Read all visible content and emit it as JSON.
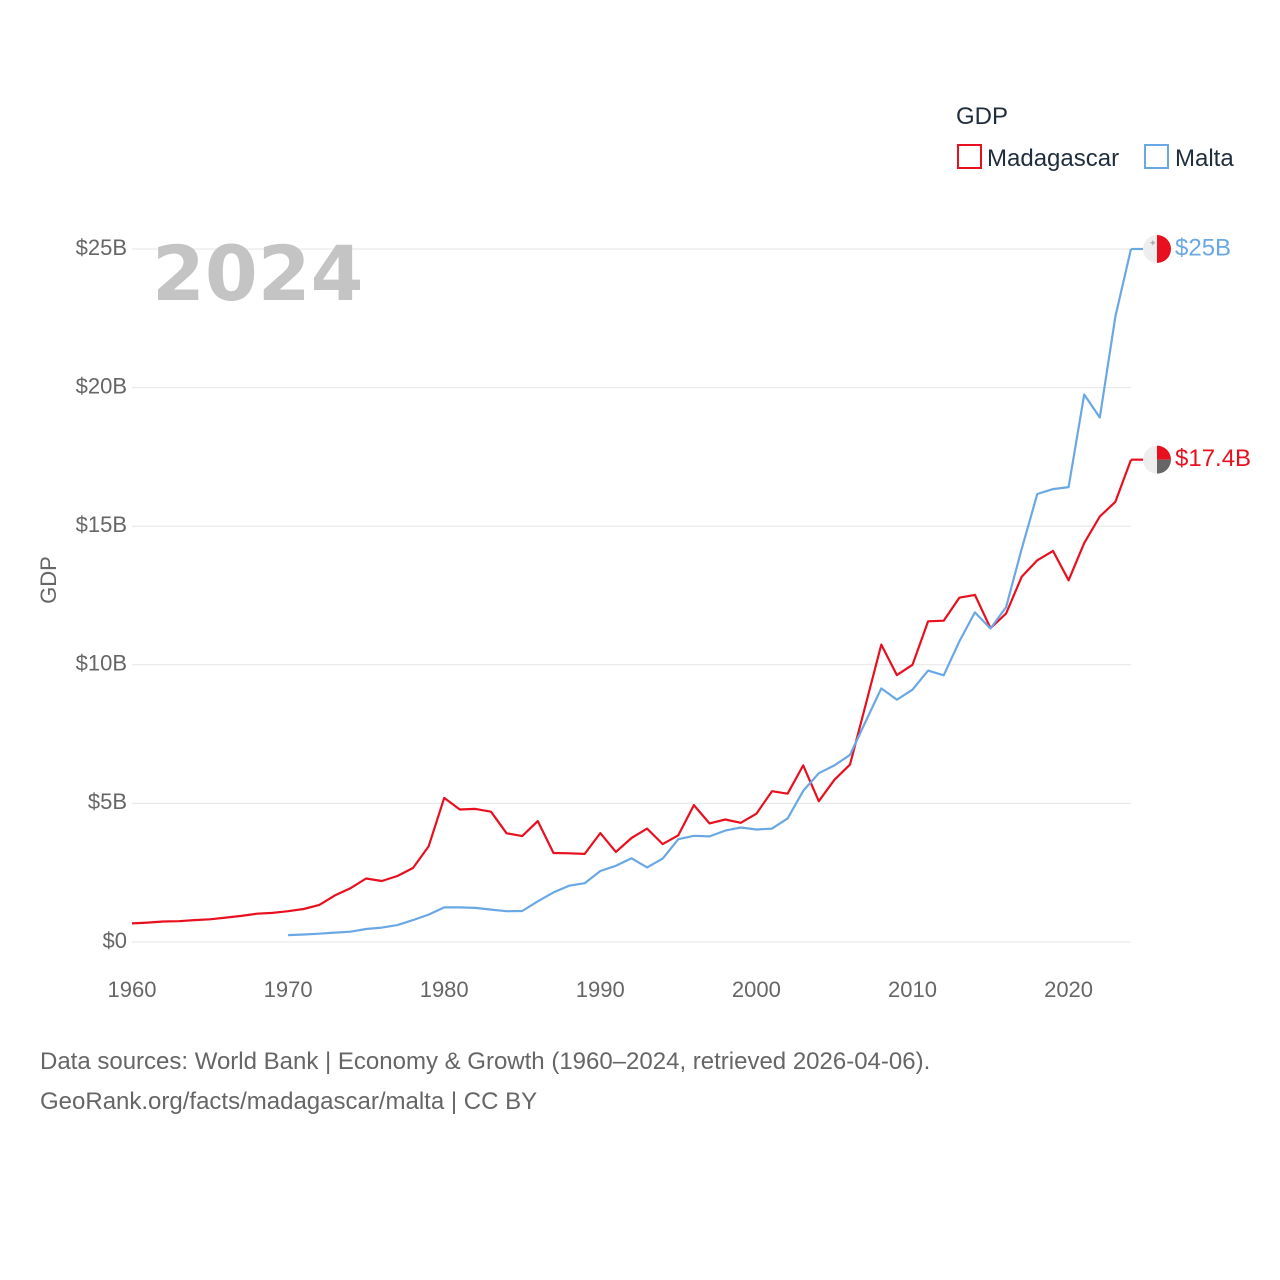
{
  "chart_data": {
    "type": "line",
    "title": "",
    "year_label": "2024",
    "ylabel": "GDP",
    "xlabel": "",
    "xlim": [
      1960,
      2024
    ],
    "ylim": [
      0,
      25
    ],
    "x_ticks": [
      "1960",
      "1970",
      "1980",
      "1990",
      "2000",
      "2010",
      "2020"
    ],
    "y_ticks": [
      "$0",
      "$5B",
      "$10B",
      "$15B",
      "$20B",
      "$25B"
    ],
    "grid": true,
    "legend": {
      "title": "GDP",
      "position": "top-right",
      "items": [
        "Madagascar",
        "Malta"
      ]
    },
    "series": [
      {
        "name": "Madagascar",
        "color": "#e8101f",
        "end_label": "$17.4B",
        "flag_icon": "madagascar-flag-icon",
        "x": [
          1960,
          1961,
          1962,
          1963,
          1964,
          1965,
          1966,
          1967,
          1968,
          1969,
          1970,
          1971,
          1972,
          1973,
          1974,
          1975,
          1976,
          1977,
          1978,
          1979,
          1980,
          1981,
          1982,
          1983,
          1984,
          1985,
          1986,
          1987,
          1988,
          1989,
          1990,
          1991,
          1992,
          1993,
          1994,
          1995,
          1996,
          1997,
          1998,
          1999,
          2000,
          2001,
          2002,
          2003,
          2004,
          2005,
          2006,
          2007,
          2008,
          2009,
          2010,
          2011,
          2012,
          2013,
          2014,
          2015,
          2016,
          2017,
          2018,
          2019,
          2020,
          2021,
          2022,
          2023,
          2024
        ],
        "values": [
          0.67,
          0.7,
          0.74,
          0.75,
          0.79,
          0.82,
          0.88,
          0.94,
          1.02,
          1.05,
          1.11,
          1.19,
          1.34,
          1.68,
          1.94,
          2.29,
          2.2,
          2.38,
          2.67,
          3.45,
          5.2,
          4.78,
          4.8,
          4.7,
          3.92,
          3.82,
          4.36,
          3.21,
          3.2,
          3.18,
          3.93,
          3.25,
          3.75,
          4.09,
          3.53,
          3.85,
          4.94,
          4.28,
          4.42,
          4.3,
          4.63,
          5.44,
          5.35,
          6.37,
          5.08,
          5.85,
          6.4,
          8.55,
          10.73,
          9.63,
          10.0,
          11.57,
          11.59,
          12.42,
          12.52,
          11.32,
          11.85,
          13.18,
          13.77,
          14.11,
          13.05,
          14.39,
          15.35,
          15.88,
          17.4
        ]
      },
      {
        "name": "Malta",
        "color": "#6aa8e4",
        "end_label": "$25B",
        "flag_icon": "malta-flag-icon",
        "x": [
          1970,
          1971,
          1972,
          1973,
          1974,
          1975,
          1976,
          1977,
          1978,
          1979,
          1980,
          1981,
          1982,
          1983,
          1984,
          1985,
          1986,
          1987,
          1988,
          1989,
          1990,
          1991,
          1992,
          1993,
          1994,
          1995,
          1996,
          1997,
          1998,
          1999,
          2000,
          2001,
          2002,
          2003,
          2004,
          2005,
          2006,
          2007,
          2008,
          2009,
          2010,
          2011,
          2012,
          2013,
          2014,
          2015,
          2016,
          2017,
          2018,
          2019,
          2020,
          2021,
          2022,
          2023,
          2024
        ],
        "values": [
          0.25,
          0.27,
          0.3,
          0.34,
          0.37,
          0.47,
          0.52,
          0.61,
          0.79,
          0.99,
          1.25,
          1.25,
          1.23,
          1.17,
          1.11,
          1.12,
          1.47,
          1.79,
          2.03,
          2.12,
          2.56,
          2.75,
          3.02,
          2.69,
          3.01,
          3.71,
          3.83,
          3.81,
          4.02,
          4.13,
          4.06,
          4.09,
          4.46,
          5.45,
          6.09,
          6.37,
          6.75,
          7.95,
          9.15,
          8.74,
          9.1,
          9.79,
          9.62,
          10.84,
          11.89,
          11.31,
          12.08,
          14.18,
          16.16,
          16.34,
          16.41,
          19.75,
          18.92,
          22.57,
          25.0
        ]
      }
    ]
  },
  "footer": {
    "line1": "Data sources: World Bank | Economy & Growth (1960–2024, retrieved 2026-04-06).",
    "line2": "GeoRank.org/facts/madagascar/malta | CC BY"
  }
}
